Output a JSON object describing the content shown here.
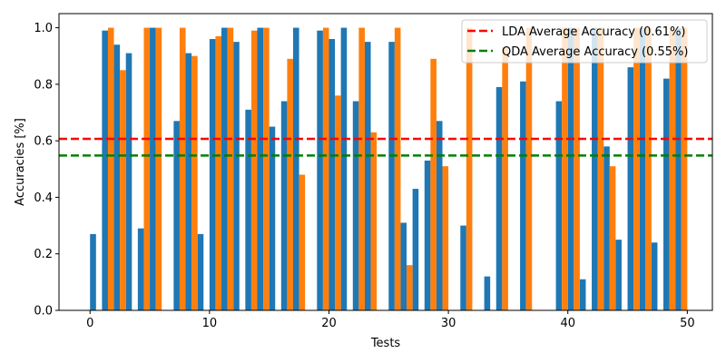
{
  "chart_data": {
    "type": "bar",
    "xlabel": "Tests",
    "ylabel": "Accuracies [%]",
    "xlim": [
      -2.6,
      52.1
    ],
    "ylim": [
      0.0,
      1.05
    ],
    "xticks": [
      0,
      10,
      20,
      30,
      40,
      50
    ],
    "yticks": [
      0.0,
      0.2,
      0.4,
      0.6,
      0.8,
      1.0
    ],
    "legend_position": "top-right",
    "series": [
      {
        "name": "LDA",
        "color": "#1f77b4",
        "values": [
          0.27,
          0.99,
          0.94,
          0.91,
          0.29,
          1.0,
          0,
          0.67,
          0.91,
          0.27,
          0.96,
          1.0,
          0.95,
          0.71,
          1.0,
          0.65,
          0.74,
          1.0,
          0,
          0.99,
          0.96,
          1.0,
          0.74,
          0.95,
          0,
          0.95,
          0.31,
          0.43,
          0.53,
          0.67,
          0,
          0.3,
          0,
          0.12,
          0.79,
          0,
          0.81,
          0,
          0,
          0.74,
          1.0,
          0.11,
          1.0,
          0.58,
          0.25,
          0.86,
          1.0,
          0.24,
          0.82,
          1.0
        ]
      },
      {
        "name": "QDA",
        "color": "#ff7f0e",
        "values": [
          0,
          1.0,
          0.85,
          0,
          1.0,
          1.0,
          0,
          1.0,
          0.9,
          0,
          0.97,
          1.0,
          0,
          0.99,
          1.0,
          0,
          0.89,
          0.48,
          0,
          1.0,
          0.76,
          0,
          1.0,
          0.63,
          0,
          1.0,
          0.16,
          0,
          0.89,
          0.51,
          0,
          1.0,
          0,
          0,
          0.93,
          0,
          1.0,
          0,
          0,
          1.0,
          1.0,
          0,
          1.0,
          0.51,
          0,
          1.0,
          1.0,
          0,
          1.0,
          1.0
        ]
      }
    ],
    "average_lines": [
      {
        "label": "LDA Average Accuracy (0.61%)",
        "value": 0.607,
        "color": "#ff0000"
      },
      {
        "label": "QDA Average Accuracy (0.55%)",
        "value": 0.548,
        "color": "#008000"
      }
    ]
  }
}
